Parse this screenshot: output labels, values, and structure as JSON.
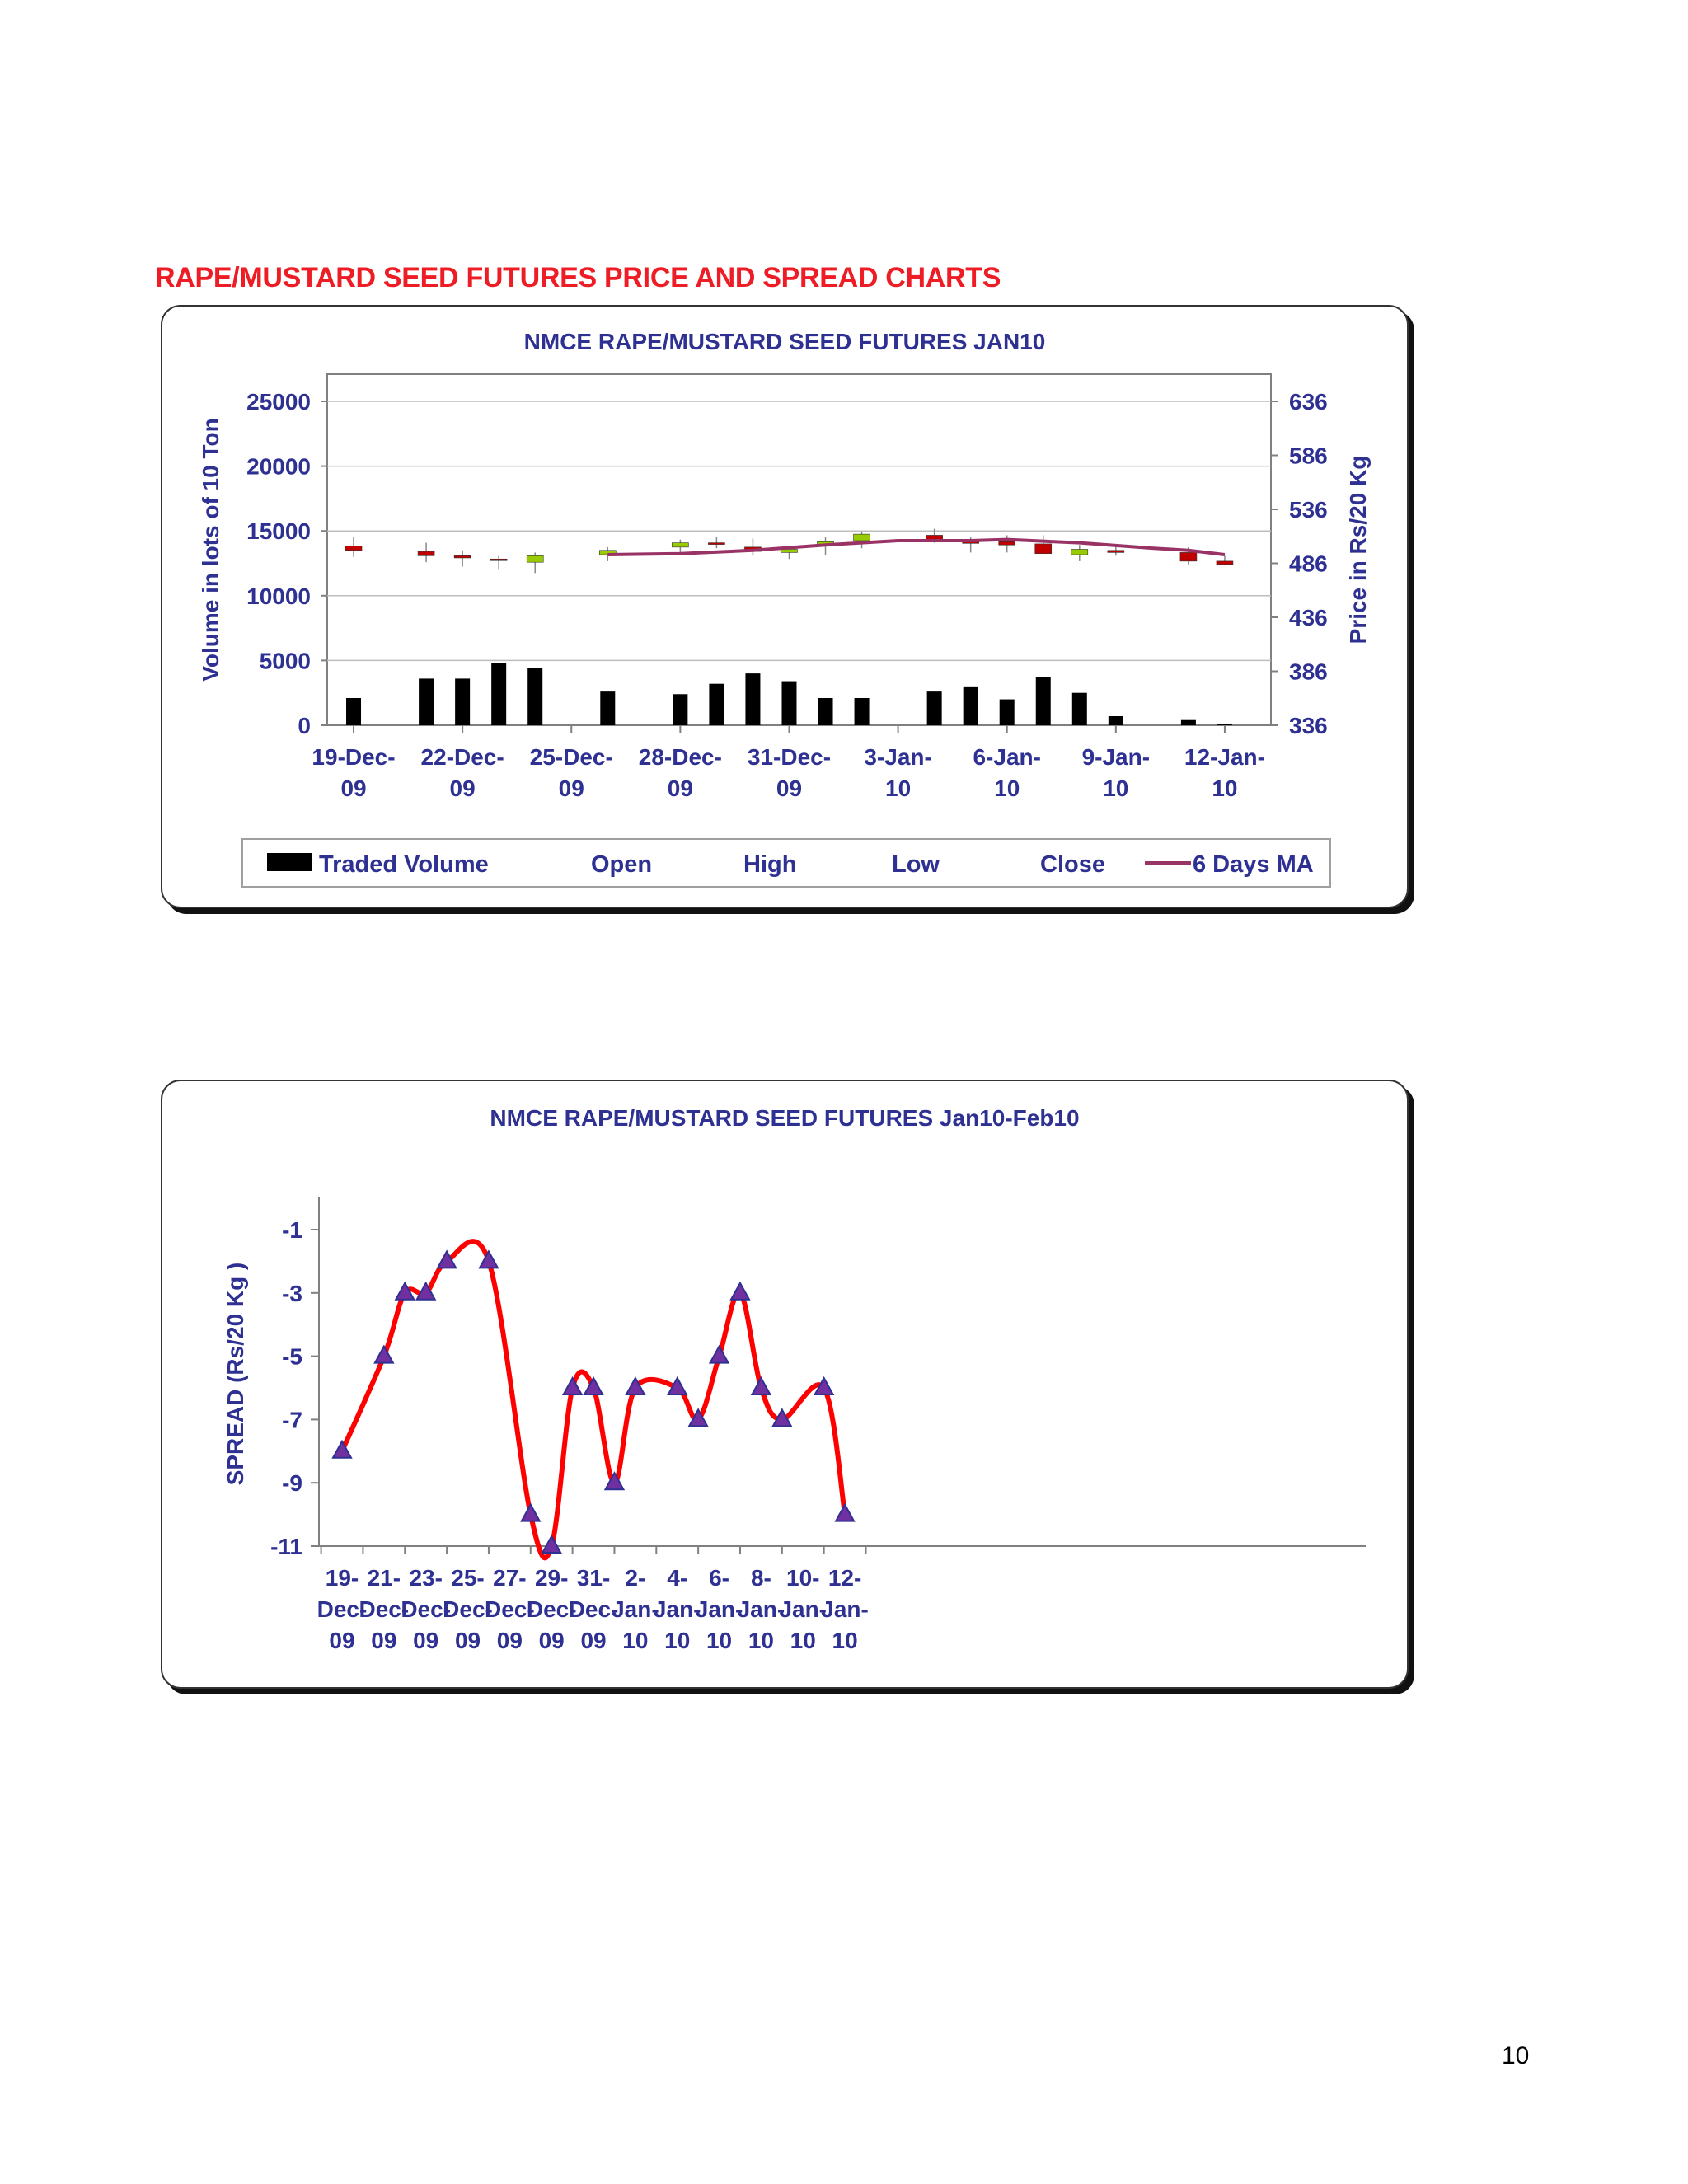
{
  "page": {
    "heading": "RAPE/MUSTARD SEED FUTURES PRICE AND SPREAD CHARTS",
    "page_number": "10"
  },
  "colors": {
    "heading": "#ee1c25",
    "axis_text": "#2e3192",
    "volume_bar": "#000000",
    "candle_up": "#99cc00",
    "candle_down": "#c00000",
    "ma_line": "#993366",
    "spread_line": "#ff0000",
    "marker_fill": "#7030a0",
    "marker_stroke": "#2e3192"
  },
  "chart_data": [
    {
      "type": "bar",
      "title": "NMCE RAPE/MUSTARD SEED FUTURES JAN10",
      "ylabel": "Volume in lots of 10 Ton",
      "y2label": "Price in Rs/20 Kg",
      "ylim": [
        0,
        25000
      ],
      "y_ticks": [
        "0",
        "5000",
        "10000",
        "15000",
        "20000",
        "25000"
      ],
      "y2lim": [
        336,
        636
      ],
      "y2_ticks": [
        "336",
        "386",
        "436",
        "486",
        "536",
        "586",
        "636"
      ],
      "x_tick_labels": [
        [
          "19-Dec-",
          "09"
        ],
        [
          "22-Dec-",
          "09"
        ],
        [
          "25-Dec-",
          "09"
        ],
        [
          "28-Dec-",
          "09"
        ],
        [
          "31-Dec-",
          "09"
        ],
        [
          "3-Jan-",
          "10"
        ],
        [
          "6-Jan-",
          "10"
        ],
        [
          "9-Jan-",
          "10"
        ],
        [
          "12-Jan-",
          "10"
        ]
      ],
      "legend": [
        "Traded Volume",
        "Open",
        "High",
        "Low",
        "Close",
        "6 Days MA"
      ],
      "legend_position": "bottom",
      "grid": true,
      "days": [
        "19-Dec-09",
        "20-Dec-09",
        "21-Dec-09",
        "22-Dec-09",
        "23-Dec-09",
        "24-Dec-09",
        "25-Dec-09",
        "26-Dec-09",
        "27-Dec-09",
        "28-Dec-09",
        "29-Dec-09",
        "30-Dec-09",
        "31-Dec-09",
        "1-Jan-10",
        "2-Jan-10",
        "3-Jan-10",
        "4-Jan-10",
        "5-Jan-10",
        "6-Jan-10",
        "7-Jan-10",
        "8-Jan-10",
        "9-Jan-10",
        "10-Jan-10",
        "11-Jan-10",
        "12-Jan-10",
        "13-Jan-10"
      ],
      "volume": [
        2100,
        null,
        3600,
        3600,
        4800,
        4400,
        null,
        2600,
        null,
        2400,
        3200,
        4000,
        3400,
        2100,
        2100,
        null,
        2600,
        3000,
        2000,
        3700,
        2500,
        700,
        null,
        400,
        100,
        null
      ],
      "ohlc": [
        {
          "day": "19-Dec-09",
          "open": 502,
          "high": 510,
          "low": 492,
          "close": 498
        },
        {
          "day": "21-Dec-09",
          "open": 497,
          "high": 505,
          "low": 487,
          "close": 493
        },
        {
          "day": "22-Dec-09",
          "open": 493,
          "high": 498,
          "low": 483,
          "close": 491
        },
        {
          "day": "23-Dec-09",
          "open": 490,
          "high": 493,
          "low": 480,
          "close": 489
        },
        {
          "day": "24-Dec-09",
          "open": 487,
          "high": 496,
          "low": 477,
          "close": 493
        },
        {
          "day": "26-Dec-09",
          "open": 494,
          "high": 501,
          "low": 488,
          "close": 498
        },
        {
          "day": "28-Dec-09",
          "open": 501,
          "high": 508,
          "low": 496,
          "close": 505
        },
        {
          "day": "29-Dec-09",
          "open": 505,
          "high": 510,
          "low": 500,
          "close": 504
        },
        {
          "day": "30-Dec-09",
          "open": 501,
          "high": 509,
          "low": 493,
          "close": 497
        },
        {
          "day": "31-Dec-09",
          "open": 496,
          "high": 500,
          "low": 490,
          "close": 499
        },
        {
          "day": "1-Jan-10",
          "open": 502,
          "high": 510,
          "low": 494,
          "close": 506
        },
        {
          "day": "2-Jan-10",
          "open": 507,
          "high": 515,
          "low": 500,
          "close": 513
        },
        {
          "day": "4-Jan-10",
          "open": 512,
          "high": 518,
          "low": 505,
          "close": 506
        },
        {
          "day": "5-Jan-10",
          "open": 506,
          "high": 510,
          "low": 496,
          "close": 505
        },
        {
          "day": "6-Jan-10",
          "open": 506,
          "high": 512,
          "low": 496,
          "close": 503
        },
        {
          "day": "7-Jan-10",
          "open": 504,
          "high": 512,
          "low": 495,
          "close": 495
        },
        {
          "day": "8-Jan-10",
          "open": 494,
          "high": 503,
          "low": 488,
          "close": 499
        },
        {
          "day": "9-Jan-10",
          "open": 498,
          "high": 503,
          "low": 493,
          "close": 496
        },
        {
          "day": "11-Jan-10",
          "open": 496,
          "high": 501,
          "low": 485,
          "close": 488
        },
        {
          "day": "12-Jan-10",
          "open": 488,
          "high": 493,
          "low": 484,
          "close": 485
        }
      ],
      "ma6": [
        {
          "day": "26-Dec-09",
          "value": 494
        },
        {
          "day": "28-Dec-09",
          "value": 495
        },
        {
          "day": "30-Dec-09",
          "value": 498
        },
        {
          "day": "1-Jan-10",
          "value": 503
        },
        {
          "day": "3-Jan-10",
          "value": 507
        },
        {
          "day": "5-Jan-10",
          "value": 507
        },
        {
          "day": "6-Jan-10",
          "value": 508
        },
        {
          "day": "8-Jan-10",
          "value": 505
        },
        {
          "day": "10-Jan-10",
          "value": 500
        },
        {
          "day": "11-Jan-10",
          "value": 498
        },
        {
          "day": "12-Jan-10",
          "value": 494
        }
      ]
    },
    {
      "type": "line",
      "title": "NMCE RAPE/MUSTARD SEED FUTURES Jan10-Feb10",
      "ylabel": "SPREAD (Rs/20 Kg    )",
      "ylim": [
        -11,
        -0.2
      ],
      "y_ticks": [
        "-11",
        "-9",
        "-7",
        "-5",
        "-3",
        "-1"
      ],
      "grid": false,
      "x_tick_labels": [
        [
          "19-",
          "Dec-",
          "09"
        ],
        [
          "21-",
          "Dec-",
          "09"
        ],
        [
          "23-",
          "Dec-",
          "09"
        ],
        [
          "25-",
          "Dec-",
          "09"
        ],
        [
          "27-",
          "Dec-",
          "09"
        ],
        [
          "29-",
          "Dec-",
          "09"
        ],
        [
          "31-",
          "Dec-",
          "09"
        ],
        [
          "2-",
          "Jan-",
          "10"
        ],
        [
          "4-",
          "Jan-",
          "10"
        ],
        [
          "6-",
          "Jan-",
          "10"
        ],
        [
          "8-",
          "Jan-",
          "10"
        ],
        [
          "10-",
          "Jan-",
          "10"
        ],
        [
          "12-",
          "Jan-",
          "10"
        ]
      ],
      "x": [
        "19-Dec-09",
        "21-Dec-09",
        "22-Dec-09",
        "23-Dec-09",
        "24-Dec-09",
        "26-Dec-09",
        "28-Dec-09",
        "29-Dec-09",
        "30-Dec-09",
        "31-Dec-09",
        "1-Jan-10",
        "2-Jan-10",
        "4-Jan-10",
        "5-Jan-10",
        "6-Jan-10",
        "7-Jan-10",
        "8-Jan-10",
        "9-Jan-10",
        "11-Jan-10",
        "12-Jan-10"
      ],
      "values": [
        -8,
        -5,
        -3,
        -3,
        -2,
        -2,
        -10,
        -11,
        -6,
        -6,
        -9,
        -6,
        -6,
        -7,
        -5,
        -3,
        -6,
        -7,
        -6,
        -10
      ]
    }
  ]
}
